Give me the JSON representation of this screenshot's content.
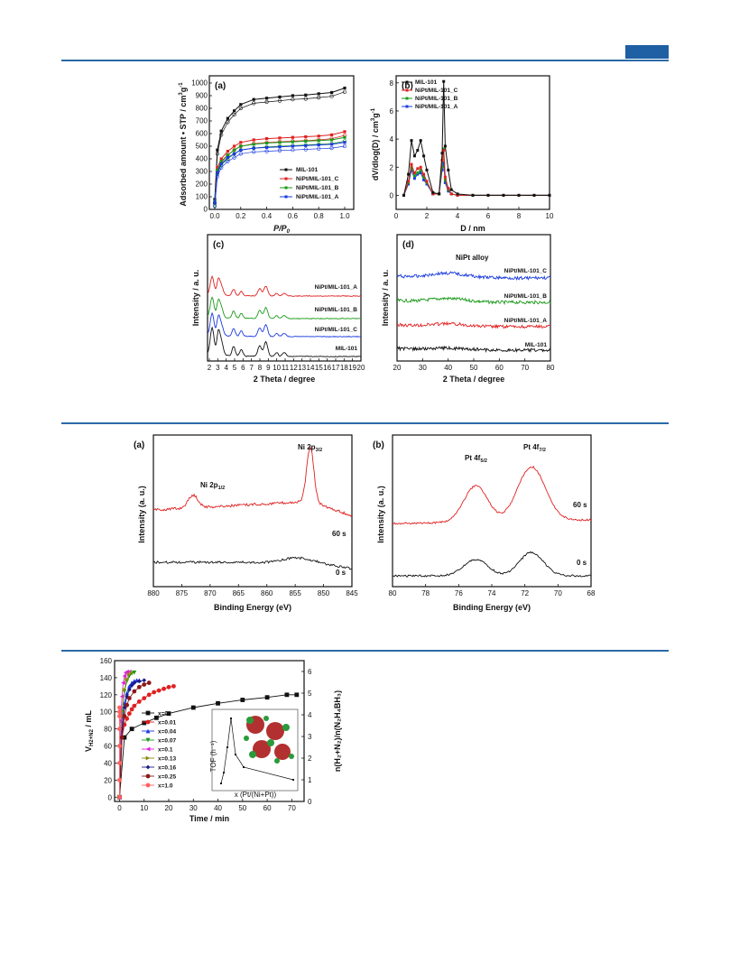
{
  "figures": {
    "fig1": {
      "a": {
        "label": "(a)",
        "xlabel": "P/P",
        "xlabel_sub": "0",
        "ylabel": "Adsorbed amount • STP / cm",
        "ylabel_sup": "3",
        "ylabel_tail": "g",
        "ylabel_tail_sup": "-1",
        "legend": [
          "MIL-101",
          "NiPt/MIL-101_C",
          "NiPt/MIL-101_B",
          "NiPt/MIL-101_A"
        ]
      },
      "b": {
        "label": "(b)",
        "xlabel": "D / nm",
        "ylabel": "dV/dlog(D) / cm",
        "ylabel_sup": "3",
        "ylabel_tail": "g",
        "ylabel_tail_sup": "-1",
        "legend": [
          "MIL-101",
          "NiPt/MIL-101_C",
          "NiPt/MIL-101_B",
          "NiPt/MIL-101_A"
        ]
      },
      "c": {
        "label": "(c)",
        "xlabel": "2 Theta / degree",
        "ylabel": "Intensity / a. u.",
        "curves": [
          "NiPt/MIL-101_A",
          "NiPt/MIL-101_B",
          "NiPt/MIL-101_C",
          "MIL-101"
        ]
      },
      "d": {
        "label": "(d)",
        "xlabel": "2 Theta / degree",
        "ylabel": "Intensity / a. u.",
        "annotation": "NiPt alloy",
        "curves": [
          "NiPt/MIL-101_C",
          "NiPt/MIL-101_B",
          "NiPt/MIL-101_A",
          "MIL-101"
        ]
      }
    },
    "fig2": {
      "a": {
        "label": "(a)",
        "xlabel": "Binding Energy (eV)",
        "ylabel": "Intensity (a. u.)",
        "peak1": "Ni 2p",
        "peak1_sub": "1/2",
        "peak2": "Ni 2p",
        "peak2_sub": "3/2",
        "t1": "60 s",
        "t2": "0 s"
      },
      "b": {
        "label": "(b)",
        "xlabel": "Binding Energy (eV)",
        "ylabel": "Intensity (a. u.)",
        "peak1": "Pt 4f",
        "peak1_sub": "5/2",
        "peak2": "Pt 4f",
        "peak2_sub": "7/2",
        "t1": "60 s",
        "t2": "0 s"
      }
    },
    "fig3": {
      "xlabel": "Time / min",
      "ylabel": "V",
      "ylabel_sub": "H2+N2",
      "ylabel_tail": " / mL",
      "ylabel_right": "n(H₂+N₂)/n(N₂H₄BH₃)",
      "legend": [
        "x=0",
        "x=0.01",
        "x=0.04",
        "x=0.07",
        "x=0.1",
        "x=0.13",
        "x=0.16",
        "x=0.25",
        "x=1.0"
      ],
      "inset_xlabel": "x (Pt/(Ni+Pt))",
      "inset_ylabel": "TOF (h⁻¹)"
    }
  },
  "chart_data": [
    {
      "type": "scatter",
      "panel": "fig1-a",
      "xlim": [
        0,
        1.0
      ],
      "ylim": [
        0,
        1000
      ],
      "xticks": [
        "0.0",
        "0.2",
        "0.4",
        "0.6",
        "0.8",
        "1.0"
      ],
      "yticks": [
        "0",
        "100",
        "200",
        "300",
        "400",
        "500",
        "600",
        "700",
        "800",
        "900",
        "1000"
      ],
      "x": [
        0.0,
        0.02,
        0.05,
        0.1,
        0.15,
        0.2,
        0.3,
        0.4,
        0.5,
        0.6,
        0.7,
        0.8,
        0.9,
        1.0
      ],
      "series": [
        {
          "name": "MIL-101",
          "color": "#111111",
          "values": [
            80,
            470,
            620,
            720,
            780,
            830,
            870,
            880,
            890,
            900,
            905,
            915,
            925,
            960
          ]
        },
        {
          "name": "NiPt/MIL-101_C",
          "color": "#e02020",
          "values": [
            60,
            330,
            400,
            460,
            500,
            530,
            550,
            560,
            565,
            570,
            575,
            580,
            590,
            615
          ]
        },
        {
          "name": "NiPt/MIL-101_B",
          "color": "#1a9a1a",
          "values": [
            60,
            310,
            380,
            430,
            470,
            500,
            515,
            525,
            530,
            535,
            540,
            545,
            550,
            570
          ]
        },
        {
          "name": "NiPt/MIL-101_A",
          "color": "#1a3ae0",
          "values": [
            55,
            290,
            360,
            410,
            440,
            470,
            485,
            490,
            495,
            500,
            505,
            510,
            515,
            530
          ]
        }
      ]
    },
    {
      "type": "line",
      "panel": "fig1-b",
      "xlim": [
        0,
        10
      ],
      "ylim": [
        -1,
        8.5
      ],
      "xticks": [
        "0",
        "2",
        "4",
        "6",
        "8",
        "10"
      ],
      "yticks": [
        "0",
        "2",
        "4",
        "6",
        "8"
      ],
      "x": [
        0.5,
        0.8,
        1.0,
        1.2,
        1.4,
        1.6,
        1.8,
        2.0,
        2.4,
        2.8,
        3.0,
        3.1,
        3.2,
        3.4,
        3.6,
        4.0,
        5,
        6,
        7,
        8,
        9,
        10
      ],
      "series": [
        {
          "name": "MIL-101",
          "color": "#111111",
          "values": [
            0,
            1.5,
            3.9,
            2.8,
            3.2,
            3.9,
            2.8,
            1.8,
            0.2,
            0.1,
            3.0,
            8.1,
            3.5,
            1.8,
            0.4,
            0.1,
            0,
            0,
            0,
            0,
            0,
            0
          ]
        },
        {
          "name": "NiPt/MIL-101_C",
          "color": "#e02020",
          "values": [
            0,
            1.0,
            2.2,
            1.6,
            1.9,
            2.0,
            1.5,
            1.0,
            0.1,
            0.1,
            2.5,
            3.2,
            1.3,
            0.5,
            0.1,
            0,
            0,
            0,
            0,
            0,
            0,
            0
          ]
        },
        {
          "name": "NiPt/MIL-101_B",
          "color": "#1a9a1a",
          "values": [
            0,
            0.9,
            2.0,
            1.4,
            1.6,
            1.8,
            1.3,
            0.9,
            0.1,
            0.1,
            2.0,
            3.3,
            1.1,
            0.4,
            0.1,
            0,
            0,
            0,
            0,
            0,
            0,
            0
          ]
        },
        {
          "name": "NiPt/MIL-101_A",
          "color": "#1a3ae0",
          "values": [
            0,
            0.8,
            1.8,
            1.2,
            1.5,
            1.6,
            1.1,
            0.8,
            0.1,
            0.1,
            1.8,
            2.3,
            0.9,
            0.3,
            0.1,
            0,
            0,
            0,
            0,
            0,
            0,
            0
          ]
        }
      ]
    },
    {
      "type": "line",
      "panel": "fig1-c",
      "xlim": [
        2,
        20
      ],
      "xticks": [
        "2",
        "3",
        "4",
        "5",
        "6",
        "7",
        "8",
        "9",
        "10",
        "11",
        "12",
        "13",
        "14",
        "15",
        "16",
        "17",
        "18",
        "19",
        "20"
      ],
      "series": [
        {
          "name": "NiPt/MIL-101_A",
          "color": "#e02020"
        },
        {
          "name": "NiPt/MIL-101_B",
          "color": "#1a9a1a"
        },
        {
          "name": "NiPt/MIL-101_C",
          "color": "#1a3ae0"
        },
        {
          "name": "MIL-101",
          "color": "#111111"
        }
      ]
    },
    {
      "type": "line",
      "panel": "fig1-d",
      "xlim": [
        20,
        80
      ],
      "xticks": [
        "20",
        "30",
        "40",
        "50",
        "60",
        "70",
        "80"
      ],
      "series": [
        {
          "name": "NiPt/MIL-101_C",
          "color": "#1a3ae0"
        },
        {
          "name": "NiPt/MIL-101_B",
          "color": "#1a9a1a"
        },
        {
          "name": "NiPt/MIL-101_A",
          "color": "#e02020"
        },
        {
          "name": "MIL-101",
          "color": "#111111"
        }
      ]
    },
    {
      "type": "line",
      "panel": "fig2-a",
      "xlim": [
        880,
        845
      ],
      "xticks": [
        "880",
        "875",
        "870",
        "865",
        "860",
        "855",
        "850",
        "845"
      ],
      "series": [
        {
          "name": "60 s",
          "color": "#e02020"
        },
        {
          "name": "0 s",
          "color": "#111111"
        }
      ]
    },
    {
      "type": "line",
      "panel": "fig2-b",
      "xlim": [
        80,
        68
      ],
      "xticks": [
        "80",
        "78",
        "76",
        "74",
        "72",
        "70",
        "68"
      ],
      "series": [
        {
          "name": "60 s",
          "color": "#e02020"
        },
        {
          "name": "0 s",
          "color": "#111111"
        }
      ]
    },
    {
      "type": "scatter",
      "panel": "fig3",
      "xlim": [
        -2,
        75
      ],
      "ylim": [
        -5,
        160
      ],
      "y2lim": [
        0,
        6.5
      ],
      "xticks": [
        "0",
        "10",
        "20",
        "30",
        "40",
        "50",
        "60",
        "70"
      ],
      "yticks": [
        "0",
        "20",
        "40",
        "60",
        "80",
        "100",
        "120",
        "140",
        "160"
      ],
      "y2ticks": [
        "0",
        "1",
        "2",
        "3",
        "4",
        "5",
        "6"
      ],
      "series": [
        {
          "name": "x=0",
          "color": "#111111",
          "marker": "square",
          "x": [
            0,
            2,
            5,
            10,
            15,
            20,
            30,
            40,
            50,
            60,
            68,
            72
          ],
          "y": [
            0,
            70,
            80,
            87,
            93,
            98,
            105,
            110,
            114,
            117,
            120,
            120
          ]
        },
        {
          "name": "x=0.01",
          "color": "#e02020",
          "marker": "circle",
          "x": [
            0,
            1,
            2,
            3,
            4,
            5,
            6,
            8,
            10,
            12,
            14,
            16,
            18,
            20,
            22
          ],
          "y": [
            0,
            70,
            85,
            92,
            98,
            103,
            107,
            112,
            116,
            120,
            123,
            125,
            127,
            129,
            130
          ]
        },
        {
          "name": "x=0.04",
          "color": "#1a3ae0",
          "marker": "triangle",
          "x": [
            0,
            1,
            2,
            3,
            4,
            5,
            6,
            7,
            8
          ],
          "y": [
            0,
            90,
            110,
            122,
            130,
            134,
            136,
            137,
            137
          ]
        },
        {
          "name": "x=0.07",
          "color": "#1a9a1a",
          "marker": "triangle-down",
          "x": [
            0,
            1,
            2,
            3,
            4,
            5,
            6
          ],
          "y": [
            0,
            100,
            124,
            136,
            142,
            145,
            146
          ]
        },
        {
          "name": "x=0.1",
          "color": "#e020e0",
          "marker": "triangle-left",
          "x": [
            0,
            0.5,
            1,
            1.5,
            2,
            2.5,
            3,
            4
          ],
          "y": [
            0,
            90,
            118,
            134,
            142,
            146,
            147,
            147
          ]
        },
        {
          "name": "x=0.13",
          "color": "#8a8a10",
          "marker": "triangle-right",
          "x": [
            0,
            1,
            2,
            3,
            4,
            5
          ],
          "y": [
            0,
            100,
            126,
            138,
            144,
            146
          ]
        },
        {
          "name": "x=0.16",
          "color": "#1a1a8a",
          "marker": "diamond",
          "x": [
            0,
            1,
            2,
            3,
            4,
            5,
            6,
            8,
            10
          ],
          "y": [
            0,
            80,
            105,
            118,
            126,
            131,
            134,
            136,
            137
          ]
        },
        {
          "name": "x=0.25",
          "color": "#8a1a1a",
          "marker": "circle",
          "x": [
            0,
            1,
            2,
            3,
            4,
            6,
            8,
            10,
            12
          ],
          "y": [
            0,
            70,
            95,
            108,
            116,
            124,
            129,
            132,
            134
          ]
        },
        {
          "name": "x=1.0",
          "color": "#ff6060",
          "marker": "circle",
          "x": [
            0,
            0,
            0,
            0,
            0,
            0,
            0,
            0
          ],
          "y": [
            0,
            20,
            40,
            60,
            80,
            95,
            100,
            105
          ]
        }
      ]
    }
  ]
}
